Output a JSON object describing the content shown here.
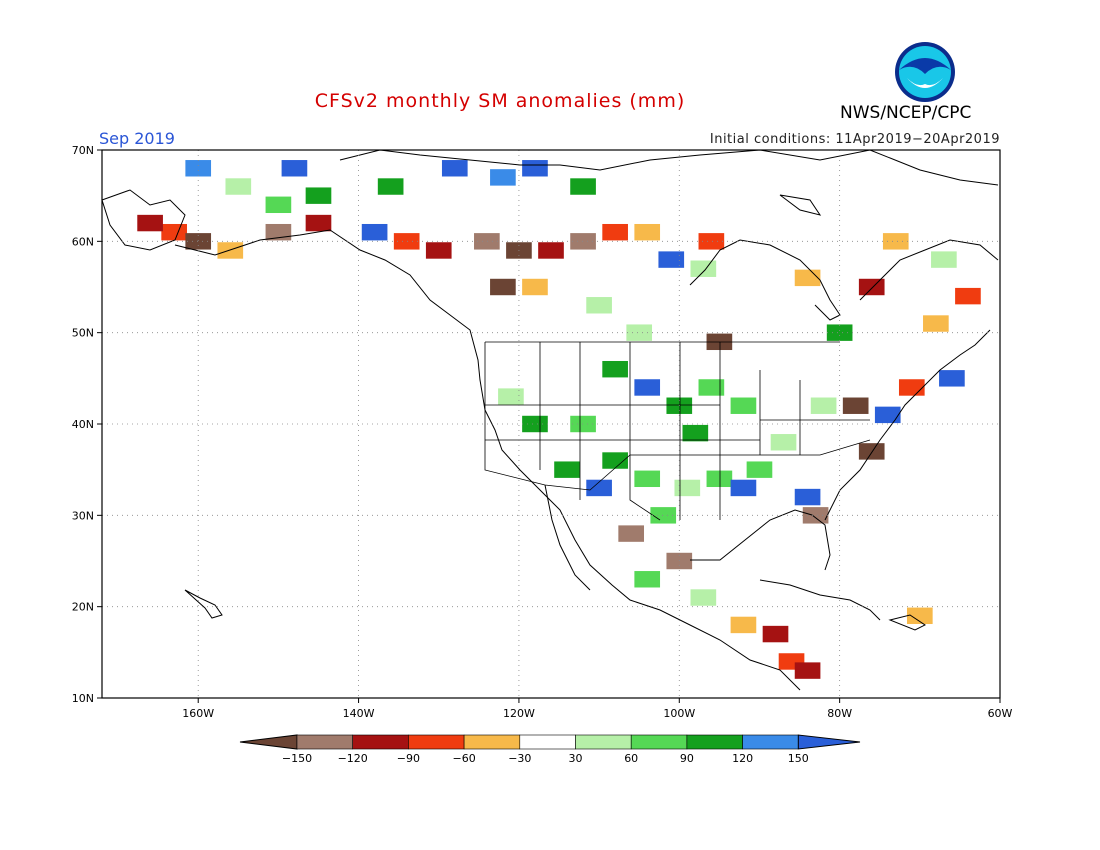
{
  "title": "CFSv2 monthly SM anomalies (mm)",
  "month_label": "Sep 2019",
  "initial_conditions": "Initial conditions: 11Apr2019−20Apr2019",
  "agency": "NWS/NCEP/CPC",
  "logo": {
    "text": "NOAA",
    "icon": "noaa-logo-icon"
  },
  "map": {
    "projection": "cylindrical equidistant",
    "lon_range": [
      -172,
      -60
    ],
    "lat_range": [
      10,
      70
    ],
    "lat_ticks": [
      {
        "value": 70,
        "label": "70N"
      },
      {
        "value": 60,
        "label": "60N"
      },
      {
        "value": 50,
        "label": "50N"
      },
      {
        "value": 40,
        "label": "40N"
      },
      {
        "value": 30,
        "label": "30N"
      },
      {
        "value": 20,
        "label": "20N"
      },
      {
        "value": 10,
        "label": "10N"
      }
    ],
    "lon_ticks": [
      {
        "value": -160,
        "label": "160W"
      },
      {
        "value": -140,
        "label": "140W"
      },
      {
        "value": -120,
        "label": "120W"
      },
      {
        "value": -100,
        "label": "100W"
      },
      {
        "value": -80,
        "label": "80W"
      },
      {
        "value": -60,
        "label": "60W"
      }
    ],
    "grid": "dotted",
    "colors": {
      "-150": "#6b4434",
      "-120": "#a07b6c",
      "-90": "#a51212",
      "-60": "#f03c10",
      "-30": "#f7b94a",
      "0": "#ffffff",
      "30": "#b6f0a8",
      "60": "#55d855",
      "90": "#14a01e",
      "120": "#3a8be8",
      "150": "#2a5fd8"
    },
    "anomaly_cells": [
      {
        "lon": -148,
        "lat": 68,
        "v": 150
      },
      {
        "lon": -160,
        "lat": 68,
        "v": 120
      },
      {
        "lon": -118,
        "lat": 68,
        "v": 150
      },
      {
        "lon": -122,
        "lat": 67,
        "v": 120
      },
      {
        "lon": -128,
        "lat": 68,
        "v": 150
      },
      {
        "lon": -112,
        "lat": 66,
        "v": 90
      },
      {
        "lon": -136,
        "lat": 66,
        "v": 90
      },
      {
        "lon": -145,
        "lat": 65,
        "v": 90
      },
      {
        "lon": -150,
        "lat": 64,
        "v": 60
      },
      {
        "lon": -155,
        "lat": 66,
        "v": 30
      },
      {
        "lon": -163,
        "lat": 61,
        "v": -60
      },
      {
        "lon": -166,
        "lat": 62,
        "v": -90
      },
      {
        "lon": -160,
        "lat": 60,
        "v": -150
      },
      {
        "lon": -156,
        "lat": 59,
        "v": -30
      },
      {
        "lon": -150,
        "lat": 61,
        "v": -120
      },
      {
        "lon": -145,
        "lat": 62,
        "v": -90
      },
      {
        "lon": -138,
        "lat": 61,
        "v": 150
      },
      {
        "lon": -134,
        "lat": 60,
        "v": -60
      },
      {
        "lon": -130,
        "lat": 59,
        "v": -90
      },
      {
        "lon": -124,
        "lat": 60,
        "v": -120
      },
      {
        "lon": -120,
        "lat": 59,
        "v": -150
      },
      {
        "lon": -116,
        "lat": 59,
        "v": -90
      },
      {
        "lon": -112,
        "lat": 60,
        "v": -120
      },
      {
        "lon": -108,
        "lat": 61,
        "v": -60
      },
      {
        "lon": -104,
        "lat": 61,
        "v": -30
      },
      {
        "lon": -96,
        "lat": 60,
        "v": -60
      },
      {
        "lon": -101,
        "lat": 58,
        "v": 150
      },
      {
        "lon": -97,
        "lat": 57,
        "v": 30
      },
      {
        "lon": -122,
        "lat": 55,
        "v": -150
      },
      {
        "lon": -118,
        "lat": 55,
        "v": -30
      },
      {
        "lon": -110,
        "lat": 53,
        "v": 30
      },
      {
        "lon": -105,
        "lat": 50,
        "v": 30
      },
      {
        "lon": -95,
        "lat": 49,
        "v": -150
      },
      {
        "lon": -84,
        "lat": 56,
        "v": -30
      },
      {
        "lon": -76,
        "lat": 55,
        "v": -90
      },
      {
        "lon": -73,
        "lat": 60,
        "v": -30
      },
      {
        "lon": -67,
        "lat": 58,
        "v": 30
      },
      {
        "lon": -64,
        "lat": 54,
        "v": -60
      },
      {
        "lon": -68,
        "lat": 51,
        "v": -30
      },
      {
        "lon": -80,
        "lat": 50,
        "v": 90
      },
      {
        "lon": -108,
        "lat": 46,
        "v": 90
      },
      {
        "lon": -104,
        "lat": 44,
        "v": 150
      },
      {
        "lon": -100,
        "lat": 42,
        "v": 90
      },
      {
        "lon": -98,
        "lat": 39,
        "v": 90
      },
      {
        "lon": -96,
        "lat": 44,
        "v": 60
      },
      {
        "lon": -92,
        "lat": 42,
        "v": 60
      },
      {
        "lon": -112,
        "lat": 40,
        "v": 60
      },
      {
        "lon": -118,
        "lat": 40,
        "v": 90
      },
      {
        "lon": -121,
        "lat": 43,
        "v": 30
      },
      {
        "lon": -114,
        "lat": 35,
        "v": 90
      },
      {
        "lon": -110,
        "lat": 33,
        "v": 150
      },
      {
        "lon": -108,
        "lat": 36,
        "v": 90
      },
      {
        "lon": -104,
        "lat": 34,
        "v": 60
      },
      {
        "lon": -106,
        "lat": 28,
        "v": -120
      },
      {
        "lon": -102,
        "lat": 30,
        "v": 60
      },
      {
        "lon": -99,
        "lat": 33,
        "v": 30
      },
      {
        "lon": -95,
        "lat": 34,
        "v": 60
      },
      {
        "lon": -92,
        "lat": 33,
        "v": 150
      },
      {
        "lon": -90,
        "lat": 35,
        "v": 60
      },
      {
        "lon": -84,
        "lat": 32,
        "v": 150
      },
      {
        "lon": -83,
        "lat": 30,
        "v": -120
      },
      {
        "lon": -87,
        "lat": 38,
        "v": 30
      },
      {
        "lon": -82,
        "lat": 42,
        "v": 30
      },
      {
        "lon": -78,
        "lat": 42,
        "v": -150
      },
      {
        "lon": -74,
        "lat": 41,
        "v": 150
      },
      {
        "lon": -76,
        "lat": 37,
        "v": -150
      },
      {
        "lon": -71,
        "lat": 44,
        "v": -60
      },
      {
        "lon": -66,
        "lat": 45,
        "v": 150
      },
      {
        "lon": -104,
        "lat": 23,
        "v": 60
      },
      {
        "lon": -100,
        "lat": 25,
        "v": -120
      },
      {
        "lon": -97,
        "lat": 21,
        "v": 30
      },
      {
        "lon": -92,
        "lat": 18,
        "v": -30
      },
      {
        "lon": -88,
        "lat": 17,
        "v": -90
      },
      {
        "lon": -86,
        "lat": 14,
        "v": -60
      },
      {
        "lon": -84,
        "lat": 13,
        "v": -90
      },
      {
        "lon": -70,
        "lat": 19,
        "v": -30
      }
    ]
  },
  "colorbar": {
    "labels": [
      "−150",
      "−120",
      "−90",
      "−60",
      "−30",
      "30",
      "60",
      "90",
      "120",
      "150"
    ],
    "colors": [
      "#6b4434",
      "#a07b6c",
      "#a51212",
      "#f03c10",
      "#f7b94a",
      "#ffffff",
      "#b6f0a8",
      "#55d855",
      "#14a01e",
      "#3a8be8",
      "#2a5fd8"
    ]
  }
}
